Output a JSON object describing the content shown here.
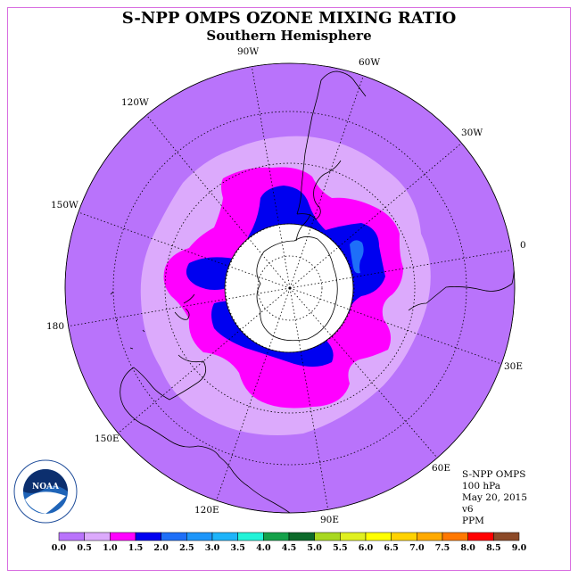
{
  "title": "S-NPP OMPS OZONE MIXING RATIO",
  "subtitle": "Southern Hemisphere",
  "longitude_labels": [
    "90W",
    "60W",
    "30W",
    "0",
    "30E",
    "60E",
    "90E",
    "120E",
    "150E",
    "180",
    "150W",
    "120W"
  ],
  "info": {
    "instrument": "S-NPP OMPS",
    "level": "100 hPa",
    "date": "May 20, 2015",
    "version": "v6",
    "units": "PPM"
  },
  "logo": {
    "text": "NOAA"
  },
  "colorbar": {
    "ticks": [
      "0.0",
      "0.5",
      "1.0",
      "1.5",
      "2.0",
      "2.5",
      "3.0",
      "3.5",
      "4.0",
      "4.5",
      "5.0",
      "5.5",
      "6.0",
      "6.5",
      "7.0",
      "7.5",
      "8.0",
      "8.5",
      "9.0"
    ],
    "colors": [
      "#b973fb",
      "#dcaafc",
      "#ff00ff",
      "#0000f0",
      "#1e6ff8",
      "#1e96fa",
      "#1eb4fa",
      "#22f3d8",
      "#14a14a",
      "#0c6a2a",
      "#a8d820",
      "#e0f020",
      "#ffff00",
      "#ffd200",
      "#ffaa00",
      "#ff7800",
      "#ff0000",
      "#8c4a28"
    ]
  },
  "map_colors": {
    "level_0_0.5": "#b973fb",
    "level_0.5_1.0": "#dcaafc",
    "level_1.0_1.5": "#ff00ff",
    "level_1.5_2.0": "#0000f0",
    "level_2.0_2.5": "#1e6ff8",
    "no_data": "#ffffff",
    "border": "#d86ee0"
  }
}
